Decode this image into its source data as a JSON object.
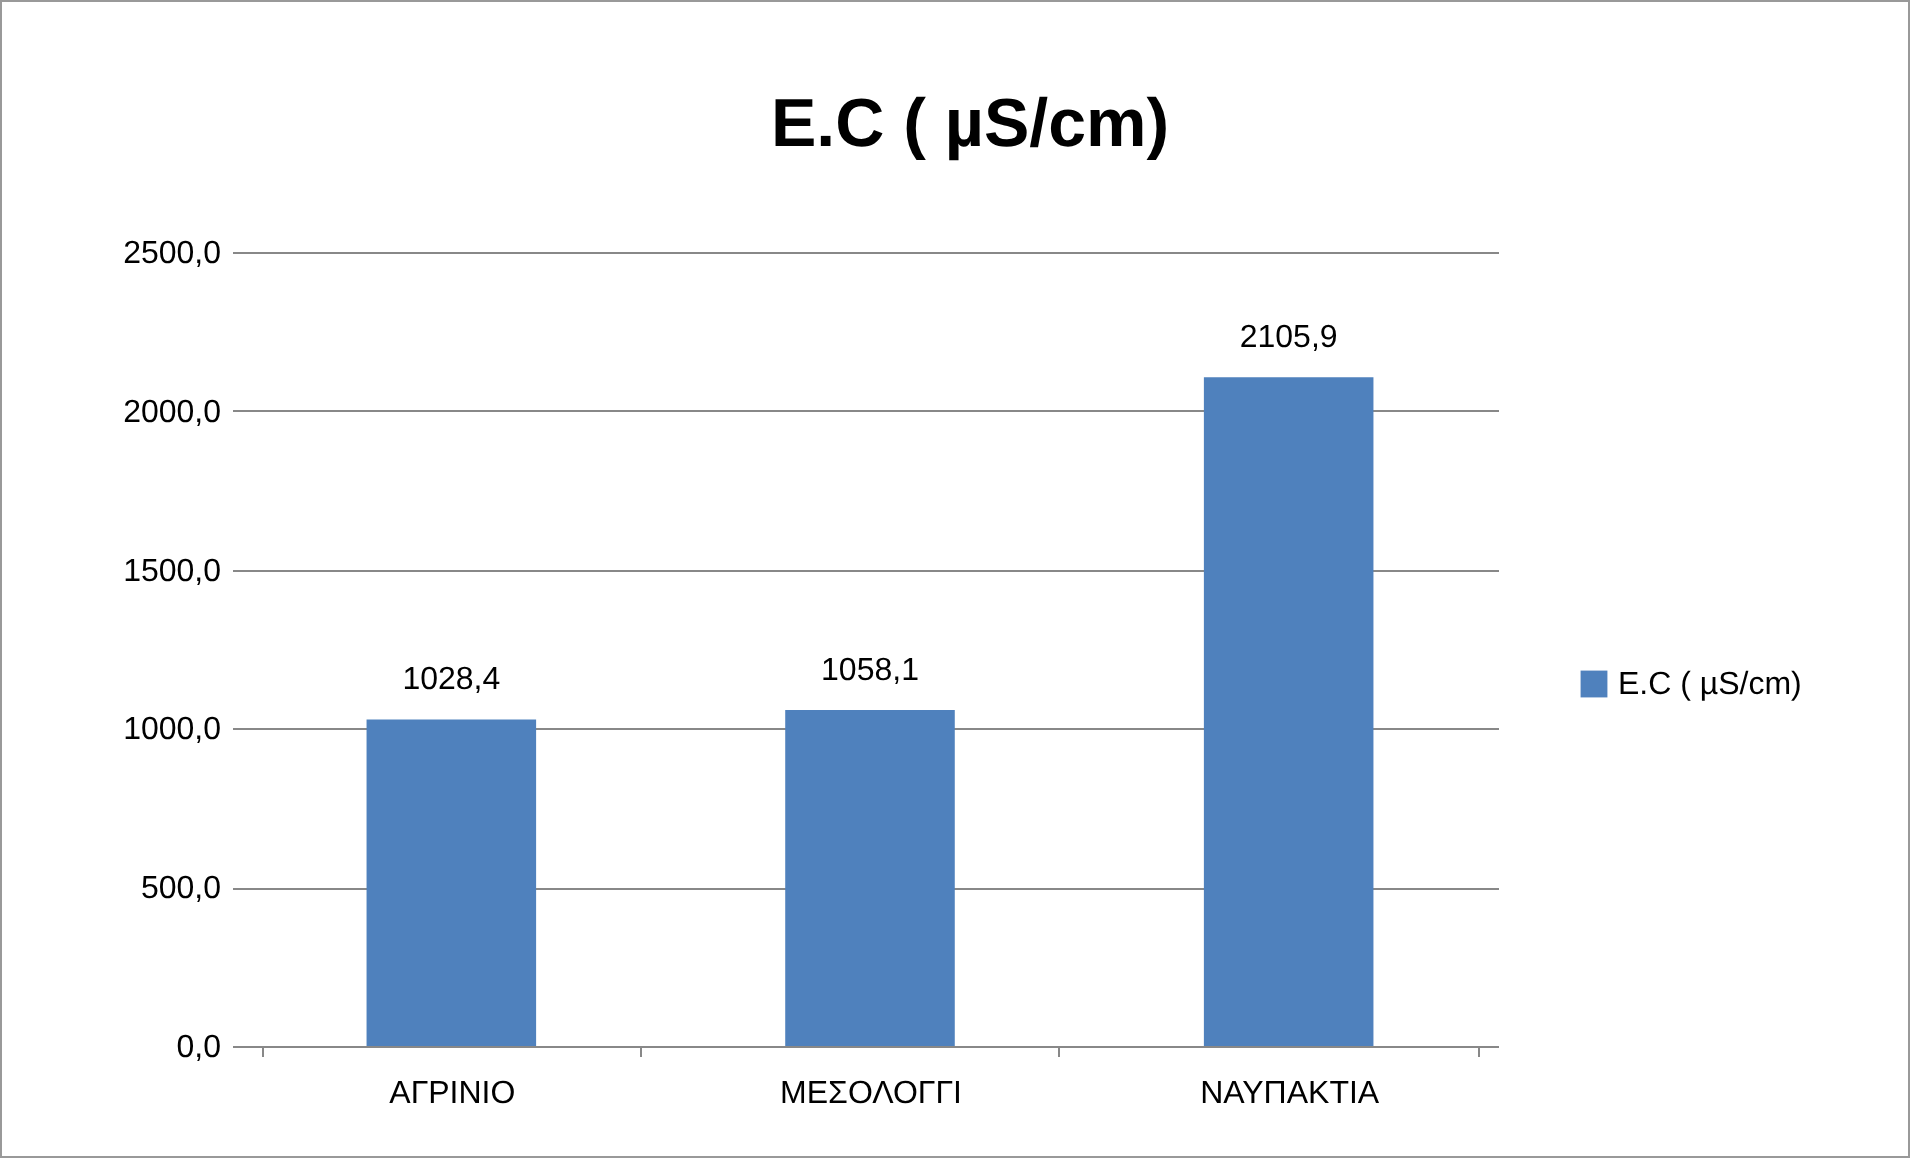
{
  "chart_data": {
    "type": "bar",
    "title": "E.C ( µS/cm)",
    "categories": [
      "ΑΓΡΙΝΙΟ",
      "ΜΕΣΟΛΟΓΓΙ",
      "ΝΑΥΠΑΚΤΙΑ"
    ],
    "series": [
      {
        "name": "E.C ( µS/cm)",
        "color": "#4f81bd",
        "values": [
          1028.4,
          1058.1,
          2105.9
        ],
        "value_labels": [
          "1028,4",
          "1058,1",
          "2105,9"
        ]
      }
    ],
    "ylim": [
      0,
      2500
    ],
    "yticks": [
      {
        "value": 0,
        "label": "0,0"
      },
      {
        "value": 500,
        "label": "500,0"
      },
      {
        "value": 1000,
        "label": "1000,0"
      },
      {
        "value": 1500,
        "label": "1500,0"
      },
      {
        "value": 2000,
        "label": "2000,0"
      },
      {
        "value": 2500,
        "label": "2500,0"
      }
    ],
    "grid": "y",
    "legend": "right"
  }
}
